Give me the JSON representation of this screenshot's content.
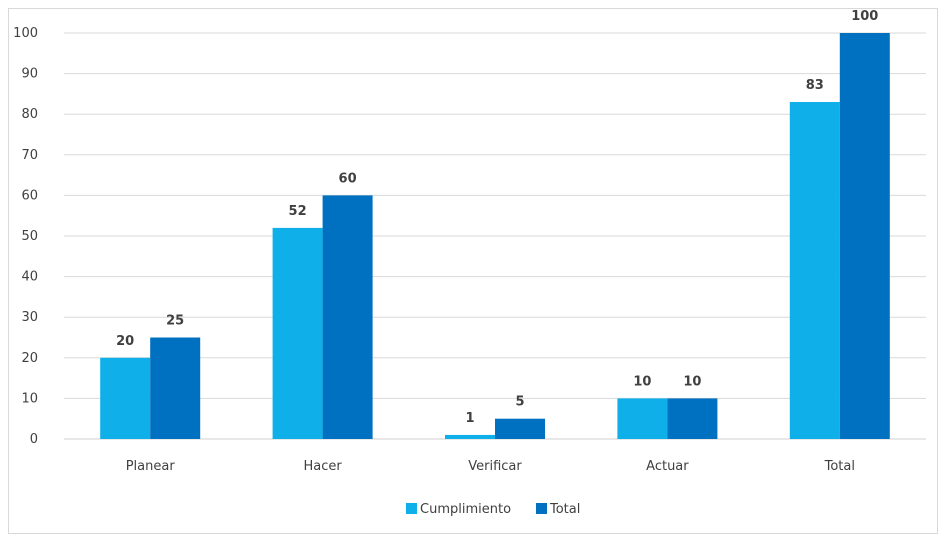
{
  "chart_data": {
    "type": "bar",
    "categories": [
      "Planear",
      "Hacer",
      "Verificar",
      "Actuar",
      "Total"
    ],
    "series": [
      {
        "name": "Cumplimiento",
        "values": [
          20,
          52,
          1,
          10,
          83
        ],
        "color": "#0fb0ea"
      },
      {
        "name": "Total",
        "values": [
          25,
          60,
          5,
          10,
          100
        ],
        "color": "#0070c0"
      }
    ],
    "ylim": [
      0,
      100
    ],
    "yticks": [
      0,
      10,
      20,
      30,
      40,
      50,
      60,
      70,
      80,
      90,
      100
    ],
    "grid": true,
    "legend_position": "bottom",
    "title": "",
    "xlabel": "",
    "ylabel": ""
  }
}
